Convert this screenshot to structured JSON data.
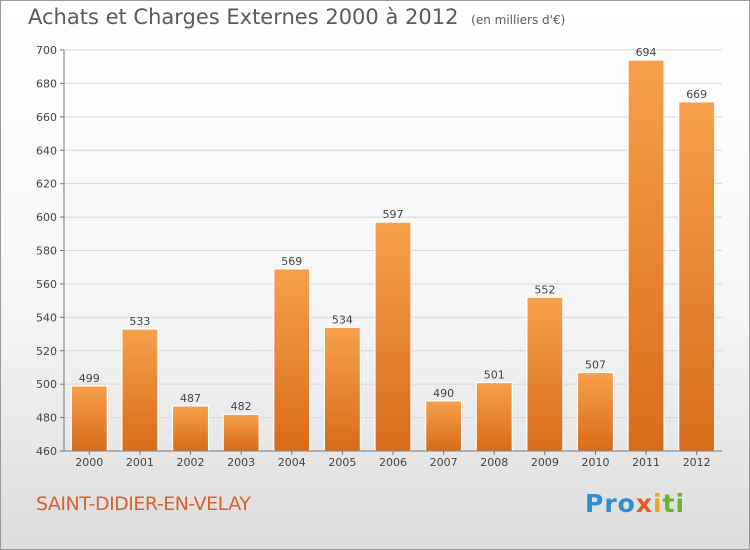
{
  "chart_data": {
    "type": "bar",
    "title": "Achats et Charges Externes 2000 à 2012",
    "unit_note": "(en milliers d'€)",
    "categories": [
      "2000",
      "2001",
      "2002",
      "2003",
      "2004",
      "2005",
      "2006",
      "2007",
      "2008",
      "2009",
      "2010",
      "2011",
      "2012"
    ],
    "values": [
      499,
      533,
      487,
      482,
      569,
      534,
      597,
      490,
      501,
      552,
      507,
      694,
      669
    ],
    "ylim": [
      460,
      700
    ],
    "yticks": [
      460,
      480,
      500,
      520,
      540,
      560,
      580,
      600,
      620,
      640,
      660,
      680,
      700
    ],
    "grid": true,
    "bar_color": "#f08a2a"
  },
  "commune": "SAINT-DIDIER-EN-VELAY",
  "logo": {
    "p1": "Pro",
    "p2": "x",
    "p3": "i",
    "p4": "ti"
  }
}
